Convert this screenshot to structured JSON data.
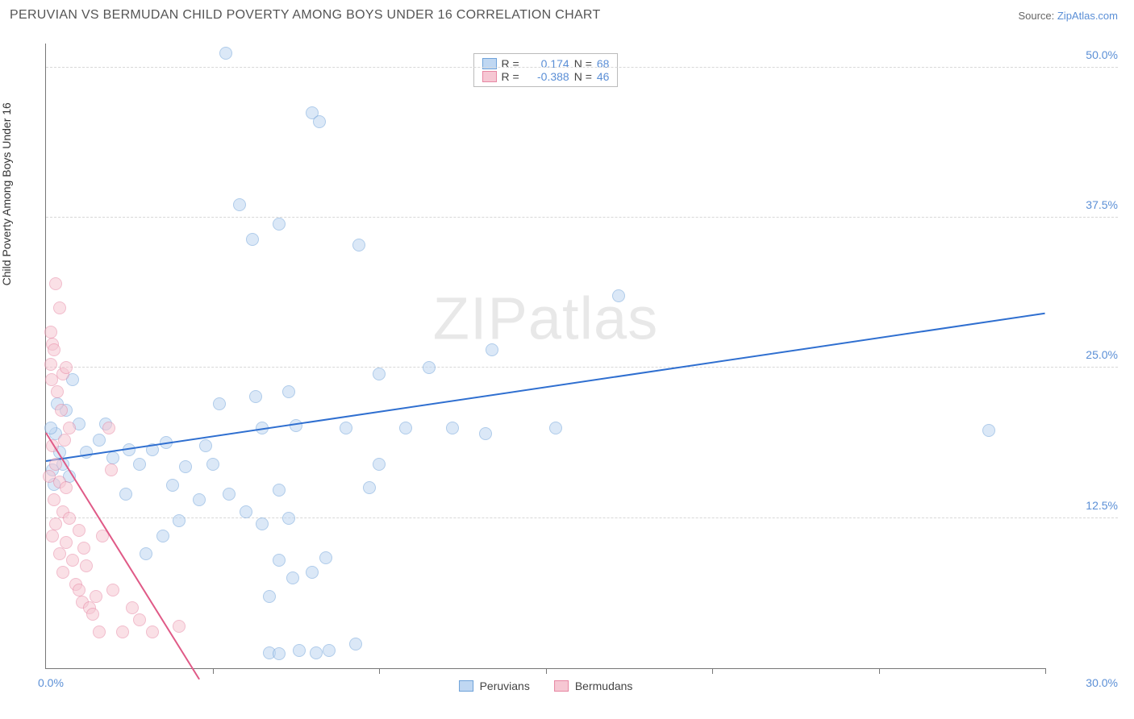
{
  "title": "PERUVIAN VS BERMUDAN CHILD POVERTY AMONG BOYS UNDER 16 CORRELATION CHART",
  "source_label": "Source: ",
  "source_link": "ZipAtlas.com",
  "ylabel": "Child Poverty Among Boys Under 16",
  "watermark_a": "ZIP",
  "watermark_b": "atlas",
  "chart": {
    "type": "scatter",
    "xlim": [
      0,
      30
    ],
    "ylim": [
      0,
      52
    ],
    "x_axis_label_min": "0.0%",
    "x_axis_label_max": "30.0%",
    "y_ticks": [
      12.5,
      25.0,
      37.5,
      50.0
    ],
    "y_tick_labels": [
      "12.5%",
      "25.0%",
      "37.5%",
      "50.0%"
    ],
    "x_ticks_minor": [
      5,
      10,
      15,
      20,
      25,
      30
    ],
    "grid_color": "#d8d8d8",
    "axis_color": "#777777",
    "background_color": "#ffffff",
    "marker_radius": 8,
    "marker_border_width": 1.2,
    "series": [
      {
        "name": "Peruvians",
        "fill": "#bfd7f2",
        "fill_opacity": 0.55,
        "stroke": "#6fa2d9",
        "R": "0.174",
        "N": "68",
        "trend": {
          "x1": 0,
          "y1": 17.2,
          "x2": 30,
          "y2": 29.5,
          "color": "#2f6fd0",
          "width": 2.4
        },
        "points": [
          [
            5.4,
            51.2
          ],
          [
            5.8,
            38.6
          ],
          [
            6.2,
            35.7
          ],
          [
            7.0,
            37.0
          ],
          [
            6.3,
            22.6
          ],
          [
            6.5,
            20.0
          ],
          [
            8.0,
            46.2
          ],
          [
            8.2,
            45.5
          ],
          [
            7.3,
            23.0
          ],
          [
            7.5,
            20.2
          ],
          [
            9.4,
            35.2
          ],
          [
            5.2,
            22.0
          ],
          [
            4.8,
            18.5
          ],
          [
            5.0,
            17.0
          ],
          [
            3.6,
            18.8
          ],
          [
            3.8,
            15.2
          ],
          [
            2.0,
            17.5
          ],
          [
            2.5,
            18.2
          ],
          [
            1.6,
            19.0
          ],
          [
            1.8,
            20.3
          ],
          [
            1.2,
            18.0
          ],
          [
            1.0,
            20.3
          ],
          [
            0.8,
            24.0
          ],
          [
            0.6,
            21.5
          ],
          [
            0.4,
            18.0
          ],
          [
            0.3,
            19.5
          ],
          [
            0.5,
            17.0
          ],
          [
            0.7,
            16.0
          ],
          [
            4.2,
            16.8
          ],
          [
            4.6,
            14.0
          ],
          [
            5.5,
            14.5
          ],
          [
            6.0,
            13.0
          ],
          [
            6.5,
            12.0
          ],
          [
            7.0,
            14.8
          ],
          [
            7.3,
            12.5
          ],
          [
            7.0,
            9.0
          ],
          [
            7.4,
            7.5
          ],
          [
            8.0,
            8.0
          ],
          [
            7.6,
            1.5
          ],
          [
            8.1,
            1.3
          ],
          [
            8.5,
            1.5
          ],
          [
            8.4,
            9.2
          ],
          [
            9.0,
            20.0
          ],
          [
            9.3,
            2.0
          ],
          [
            9.7,
            15.0
          ],
          [
            10.0,
            17.0
          ],
          [
            10.0,
            24.5
          ],
          [
            10.8,
            20.0
          ],
          [
            11.5,
            25.0
          ],
          [
            12.2,
            20.0
          ],
          [
            13.2,
            19.5
          ],
          [
            13.4,
            26.5
          ],
          [
            15.3,
            20.0
          ],
          [
            17.2,
            31.0
          ],
          [
            28.3,
            19.8
          ],
          [
            6.7,
            1.3
          ],
          [
            7.0,
            1.2
          ],
          [
            4.0,
            12.3
          ],
          [
            3.5,
            11.0
          ],
          [
            6.7,
            6.0
          ],
          [
            0.2,
            16.5
          ],
          [
            0.25,
            15.3
          ],
          [
            0.35,
            22.0
          ],
          [
            0.15,
            20.0
          ],
          [
            2.8,
            17.0
          ],
          [
            3.2,
            18.2
          ],
          [
            3.0,
            9.5
          ],
          [
            2.4,
            14.5
          ]
        ]
      },
      {
        "name": "Bermudans",
        "fill": "#f6c7d3",
        "fill_opacity": 0.55,
        "stroke": "#e787a3",
        "R": "-0.388",
        "N": "46",
        "trend": {
          "x1": 0,
          "y1": 19.5,
          "x2": 4.6,
          "y2": -1.0,
          "color": "#e05a87",
          "width": 2.2
        },
        "points": [
          [
            0.15,
            28.0
          ],
          [
            0.2,
            27.0
          ],
          [
            0.3,
            32.0
          ],
          [
            0.4,
            30.0
          ],
          [
            0.25,
            26.5
          ],
          [
            0.5,
            24.5
          ],
          [
            0.6,
            25.0
          ],
          [
            0.35,
            23.0
          ],
          [
            0.45,
            21.5
          ],
          [
            0.7,
            20.0
          ],
          [
            0.55,
            19.0
          ],
          [
            0.2,
            18.5
          ],
          [
            0.3,
            17.0
          ],
          [
            0.1,
            16.0
          ],
          [
            0.4,
            15.5
          ],
          [
            0.6,
            15.0
          ],
          [
            0.25,
            14.0
          ],
          [
            0.5,
            13.0
          ],
          [
            0.7,
            12.5
          ],
          [
            0.3,
            12.0
          ],
          [
            0.2,
            11.0
          ],
          [
            0.6,
            10.5
          ],
          [
            0.4,
            9.5
          ],
          [
            0.8,
            9.0
          ],
          [
            0.5,
            8.0
          ],
          [
            1.0,
            11.5
          ],
          [
            1.15,
            10.0
          ],
          [
            1.2,
            8.5
          ],
          [
            0.9,
            7.0
          ],
          [
            1.0,
            6.5
          ],
          [
            1.1,
            5.5
          ],
          [
            1.3,
            5.0
          ],
          [
            1.5,
            6.0
          ],
          [
            1.4,
            4.5
          ],
          [
            1.7,
            11.0
          ],
          [
            1.95,
            16.5
          ],
          [
            1.9,
            20.0
          ],
          [
            1.6,
            3.0
          ],
          [
            2.0,
            6.5
          ],
          [
            2.3,
            3.0
          ],
          [
            2.6,
            5.0
          ],
          [
            2.8,
            4.0
          ],
          [
            3.2,
            3.0
          ],
          [
            4.0,
            3.5
          ],
          [
            0.15,
            25.3
          ],
          [
            0.18,
            24.0
          ]
        ]
      }
    ],
    "legend_labels": {
      "R": "R =",
      "N": "N ="
    }
  }
}
